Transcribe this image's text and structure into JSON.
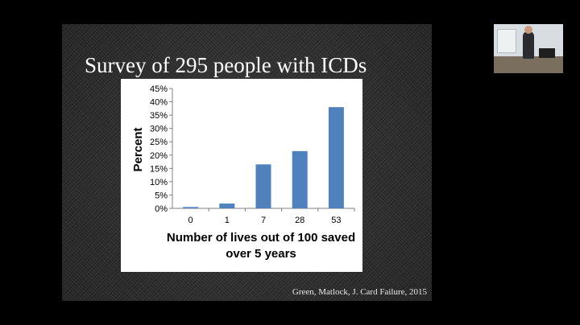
{
  "slide": {
    "title": "Survey of 295 people with ICDs",
    "citation": "Green, Matlock, J. Card Failure, 2015"
  },
  "chart_data": {
    "type": "bar",
    "categories": [
      "0",
      "1",
      "7",
      "28",
      "53"
    ],
    "values": [
      0.5,
      1.8,
      16.5,
      21.5,
      38.0
    ],
    "ylim": [
      0,
      45
    ],
    "yticks": [
      "0%",
      "5%",
      "10%",
      "15%",
      "20%",
      "25%",
      "30%",
      "35%",
      "40%",
      "45%"
    ],
    "ylabel": "Percent",
    "xlabel_line1": "Number of lives out of 100 saved",
    "xlabel_line2": "over 5 years",
    "bar_color": "#4f81bd",
    "grid": false,
    "legend": "none"
  },
  "webcam": {
    "icon": "presenter-video-feed"
  }
}
